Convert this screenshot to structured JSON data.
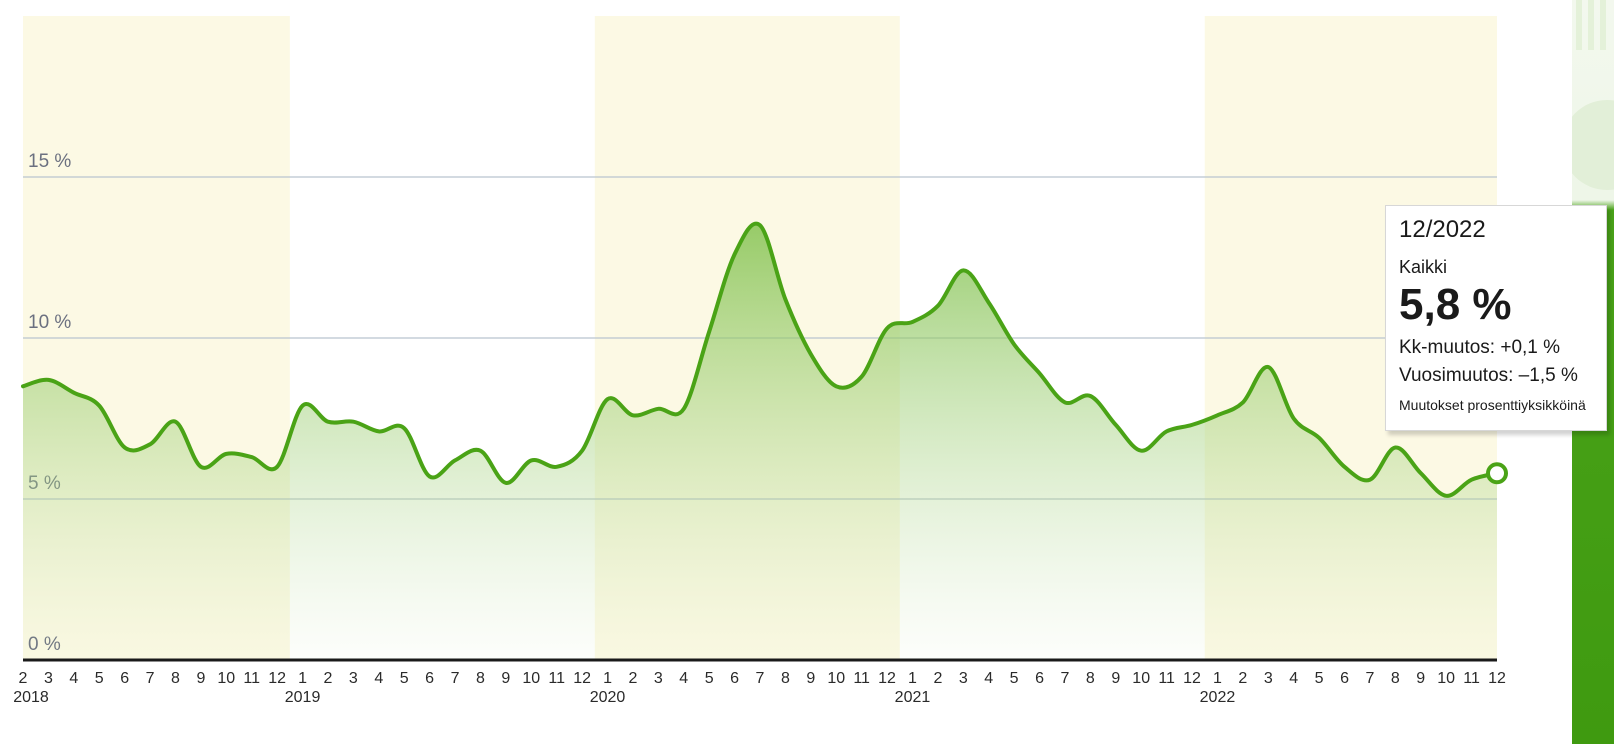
{
  "colors": {
    "line": "#4aa316",
    "fill_top": "#7fc04a",
    "year_band": "#fcf9e4",
    "grid": "#b9c4cf",
    "axis": "#1a1a1a",
    "tick_text": "#6b7080"
  },
  "chart_data": {
    "type": "area",
    "series": [
      {
        "name": "Kaikki",
        "x": [
          "2018-02",
          "2018-03",
          "2018-04",
          "2018-05",
          "2018-06",
          "2018-07",
          "2018-08",
          "2018-09",
          "2018-10",
          "2018-11",
          "2018-12",
          "2019-01",
          "2019-02",
          "2019-03",
          "2019-04",
          "2019-05",
          "2019-06",
          "2019-07",
          "2019-08",
          "2019-09",
          "2019-10",
          "2019-11",
          "2019-12",
          "2020-01",
          "2020-02",
          "2020-03",
          "2020-04",
          "2020-05",
          "2020-06",
          "2020-07",
          "2020-08",
          "2020-09",
          "2020-10",
          "2020-11",
          "2020-12",
          "2021-01",
          "2021-02",
          "2021-03",
          "2021-04",
          "2021-05",
          "2021-06",
          "2021-07",
          "2021-08",
          "2021-09",
          "2021-10",
          "2021-11",
          "2021-12",
          "2022-01",
          "2022-02",
          "2022-03",
          "2022-04",
          "2022-05",
          "2022-06",
          "2022-07",
          "2022-08",
          "2022-09",
          "2022-10",
          "2022-11",
          "2022-12"
        ],
        "values": [
          8.5,
          8.7,
          8.3,
          7.9,
          6.6,
          6.7,
          7.4,
          6.0,
          6.4,
          6.3,
          6.0,
          7.9,
          7.4,
          7.4,
          7.1,
          7.2,
          5.7,
          6.2,
          6.5,
          5.5,
          6.2,
          6.0,
          6.5,
          8.1,
          7.6,
          7.8,
          7.8,
          10.2,
          12.6,
          13.5,
          11.2,
          9.5,
          8.5,
          8.8,
          10.3,
          10.5,
          11.0,
          12.1,
          11.1,
          9.8,
          8.9,
          8.0,
          8.2,
          7.3,
          6.5,
          7.1,
          7.3,
          7.6,
          8.0,
          9.1,
          7.5,
          6.9,
          6.0,
          5.6,
          6.6,
          5.8,
          5.1,
          5.6,
          5.8
        ]
      }
    ],
    "y_ticks": [
      "0 %",
      "5 %",
      "10 %",
      "15 %"
    ],
    "ylim": [
      0,
      20
    ],
    "grid": true,
    "x_month_labels": [
      "2",
      "3",
      "4",
      "5",
      "6",
      "7",
      "8",
      "9",
      "10",
      "11",
      "12",
      "1",
      "2",
      "3",
      "4",
      "5",
      "6",
      "7",
      "8",
      "9",
      "10",
      "11",
      "12",
      "1",
      "2",
      "3",
      "4",
      "5",
      "6",
      "7",
      "8",
      "9",
      "10",
      "11",
      "12",
      "1",
      "2",
      "3",
      "4",
      "5",
      "6",
      "7",
      "8",
      "9",
      "10",
      "11",
      "12",
      "1",
      "2",
      "3",
      "4",
      "5",
      "6",
      "7",
      "8",
      "9",
      "10",
      "11",
      "12"
    ],
    "year_labels": [
      "2018",
      "2019",
      "2020",
      "2021",
      "2022"
    ]
  },
  "tooltip": {
    "date": "12/2022",
    "series": "Kaikki",
    "value": "5,8 %",
    "mom": "Kk-muutos: +0,1 %",
    "yoy": "Vuosimuutos: –1,5 %",
    "note": "Muutokset prosenttiyksikköinä"
  }
}
